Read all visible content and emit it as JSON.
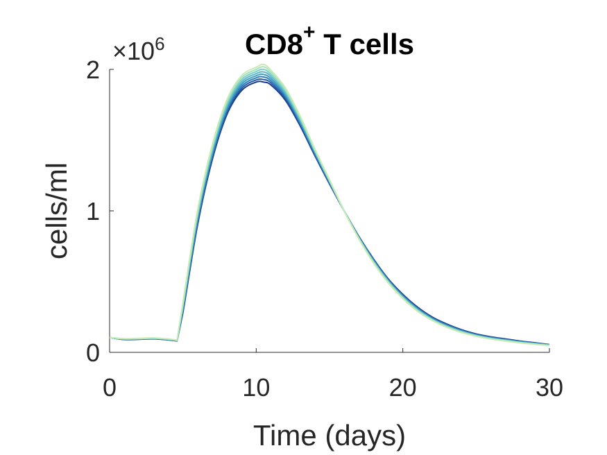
{
  "chart_data": {
    "type": "line",
    "title": "CD8",
    "title_superscript": "+",
    "title_suffix": " T cells",
    "xlabel": "Time (days)",
    "ylabel": "cells/ml",
    "y_multiplier_base": "×10",
    "y_multiplier_exp": "6",
    "xlim": [
      0,
      30
    ],
    "ylim": [
      0,
      2000000
    ],
    "xticks": [
      0,
      10,
      20,
      30
    ],
    "xtick_labels": [
      "0",
      "10",
      "20",
      "30"
    ],
    "yticks": [
      0,
      1000000,
      2000000
    ],
    "ytick_labels": [
      "0",
      "1",
      "2"
    ],
    "grid": false,
    "legend": "none",
    "x": [
      0,
      1,
      2,
      3,
      4,
      4.6,
      5,
      6,
      7,
      8,
      9,
      10,
      10.5,
      11,
      12,
      13,
      14,
      15,
      16,
      17,
      18,
      19,
      20,
      21,
      22,
      23,
      24,
      25,
      26,
      27,
      28,
      29,
      30
    ],
    "series": [
      {
        "color": "#1a3a8c",
        "values": [
          105000,
          90000,
          92000,
          95000,
          88000,
          80000,
          280000,
          900000,
          1360000,
          1680000,
          1850000,
          1910000,
          1910000,
          1890000,
          1780000,
          1600000,
          1390000,
          1190000,
          1000000,
          820000,
          660000,
          520000,
          410000,
          320000,
          250000,
          200000,
          160000,
          130000,
          110000,
          95000,
          80000,
          68000,
          55000
        ]
      },
      {
        "color": "#245aa8",
        "values": [
          105000,
          91000,
          93000,
          96000,
          89000,
          81000,
          290000,
          915000,
          1375000,
          1695000,
          1865000,
          1925000,
          1928000,
          1905000,
          1793000,
          1610000,
          1398000,
          1195000,
          1000000,
          818000,
          656000,
          516000,
          405000,
          315000,
          246000,
          196000,
          157000,
          127000,
          107000,
          92000,
          78000,
          66000,
          54000
        ]
      },
      {
        "color": "#2f7db8",
        "values": [
          105000,
          92000,
          94000,
          97000,
          90000,
          82000,
          300000,
          930000,
          1390000,
          1710000,
          1880000,
          1940000,
          1946000,
          1920000,
          1806000,
          1620000,
          1405000,
          1200000,
          1000000,
          815000,
          652000,
          512000,
          400000,
          311000,
          242000,
          192000,
          154000,
          124000,
          104000,
          90000,
          76000,
          64000,
          53000
        ]
      },
      {
        "color": "#3f9dc4",
        "values": [
          105000,
          93000,
          95000,
          98000,
          91000,
          83000,
          310000,
          945000,
          1405000,
          1725000,
          1895000,
          1955000,
          1964000,
          1935000,
          1818000,
          1630000,
          1412000,
          1204000,
          1000000,
          812000,
          648000,
          508000,
          396000,
          307000,
          238000,
          189000,
          151000,
          122000,
          102000,
          88000,
          74000,
          63000,
          52000
        ]
      },
      {
        "color": "#5bb8c9",
        "values": [
          105000,
          94000,
          96000,
          99000,
          92000,
          84000,
          320000,
          960000,
          1420000,
          1740000,
          1910000,
          1970000,
          1982000,
          1950000,
          1830000,
          1640000,
          1419000,
          1208000,
          1000000,
          810000,
          644000,
          504000,
          392000,
          303000,
          235000,
          186000,
          148000,
          120000,
          100000,
          86000,
          72000,
          61000,
          51000
        ]
      },
      {
        "color": "#7ecdc6",
        "values": [
          105000,
          95000,
          97000,
          100000,
          93000,
          85000,
          330000,
          975000,
          1435000,
          1755000,
          1925000,
          1985000,
          2000000,
          1965000,
          1842000,
          1650000,
          1426000,
          1212000,
          1000000,
          807000,
          640000,
          500000,
          388000,
          299000,
          232000,
          183000,
          146000,
          118000,
          98000,
          84000,
          70000,
          60000,
          50000
        ]
      },
      {
        "color": "#a6e0bf",
        "values": [
          105000,
          96000,
          98000,
          101000,
          94000,
          86000,
          340000,
          990000,
          1450000,
          1770000,
          1940000,
          2000000,
          2018000,
          1980000,
          1855000,
          1660000,
          1432000,
          1216000,
          1000000,
          805000,
          636000,
          496000,
          384000,
          295000,
          229000,
          180000,
          143000,
          116000,
          96000,
          82000,
          69000,
          59000,
          49000
        ]
      },
      {
        "color": "#c6ecb4",
        "values": [
          105000,
          97000,
          99000,
          102000,
          95000,
          87000,
          350000,
          1005000,
          1465000,
          1785000,
          1955000,
          2015000,
          2035000,
          1995000,
          1868000,
          1670000,
          1438000,
          1220000,
          1000000,
          802000,
          632000,
          492000,
          380000,
          291000,
          226000,
          177000,
          140000,
          114000,
          94000,
          80000,
          67000,
          57000,
          48000
        ]
      }
    ]
  }
}
